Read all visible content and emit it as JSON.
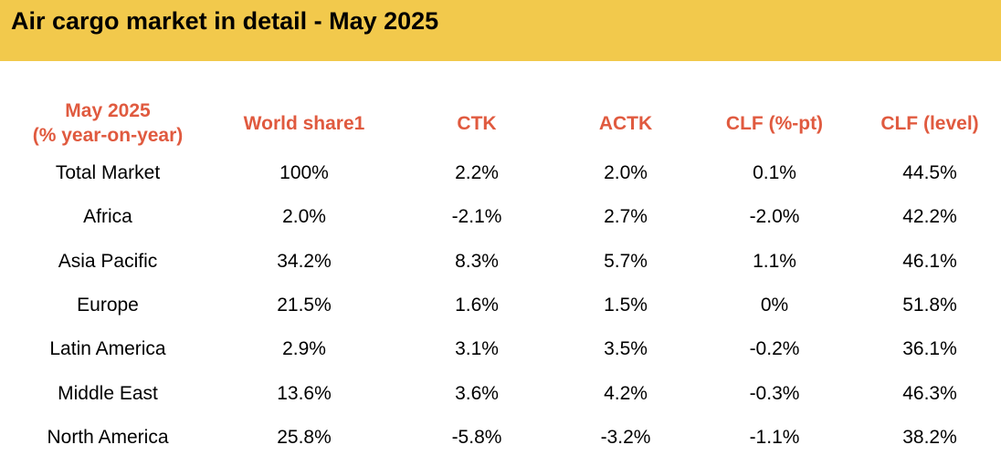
{
  "title": "Air cargo market in detail - May 2025",
  "colors": {
    "banner": "#f2c94c",
    "header_text": "#e05a3f",
    "body_text": "#000000"
  },
  "table": {
    "header": {
      "region_line1": "May 2025",
      "region_line2": "(% year-on-year)",
      "world_share": "World share1",
      "ctk": "CTK",
      "actk": "ACTK",
      "clf_pt": "CLF (%-pt)",
      "clf_level": "CLF (level)"
    },
    "rows": [
      {
        "region": "Total Market",
        "world_share": "100%",
        "ctk": "2.2%",
        "actk": "2.0%",
        "clf_pt": "0.1%",
        "clf_level": "44.5%"
      },
      {
        "region": "Africa",
        "world_share": "2.0%",
        "ctk": "-2.1%",
        "actk": "2.7%",
        "clf_pt": "-2.0%",
        "clf_level": "42.2%"
      },
      {
        "region": "Asia Pacific",
        "world_share": "34.2%",
        "ctk": "8.3%",
        "actk": "5.7%",
        "clf_pt": "1.1%",
        "clf_level": "46.1%"
      },
      {
        "region": "Europe",
        "world_share": "21.5%",
        "ctk": "1.6%",
        "actk": "1.5%",
        "clf_pt": "0%",
        "clf_level": "51.8%"
      },
      {
        "region": "Latin America",
        "world_share": "2.9%",
        "ctk": "3.1%",
        "actk": "3.5%",
        "clf_pt": "-0.2%",
        "clf_level": "36.1%"
      },
      {
        "region": "Middle East",
        "world_share": "13.6%",
        "ctk": "3.6%",
        "actk": "4.2%",
        "clf_pt": "-0.3%",
        "clf_level": "46.3%"
      },
      {
        "region": "North America",
        "world_share": "25.8%",
        "ctk": "-5.8%",
        "actk": "-3.2%",
        "clf_pt": "-1.1%",
        "clf_level": "38.2%"
      }
    ]
  }
}
